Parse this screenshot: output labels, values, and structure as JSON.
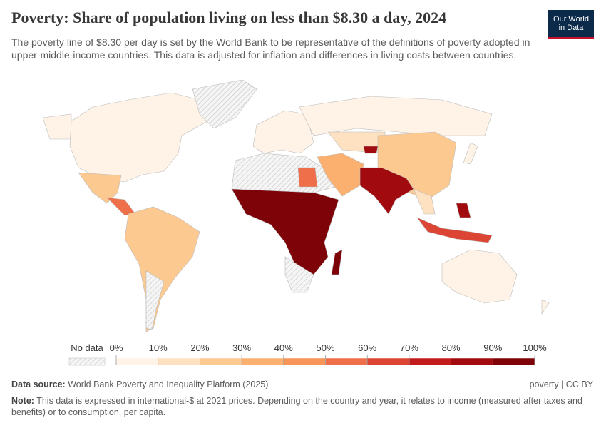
{
  "header": {
    "title": "Poverty: Share of population living on less than $8.30 a day, 2024",
    "subtitle": "The poverty line of $8.30 per day is set by the World Bank to be representative of the definitions of poverty adopted in upper-middle-income countries. This data is adjusted for inflation and differences in living costs between countries.",
    "logo": [
      "Our World",
      "in Data"
    ]
  },
  "legend": {
    "no_data": "No data",
    "ticks": [
      {
        "value": 0,
        "label": "0%"
      },
      {
        "value": 10,
        "label": "10%"
      },
      {
        "value": 20,
        "label": "20%"
      },
      {
        "value": 30,
        "label": "30%"
      },
      {
        "value": 40,
        "label": "40%"
      },
      {
        "value": 50,
        "label": "50%"
      },
      {
        "value": 60,
        "label": "60%"
      },
      {
        "value": 70,
        "label": "70%"
      },
      {
        "value": 80,
        "label": "80%"
      },
      {
        "value": 90,
        "label": "90%"
      },
      {
        "value": 100,
        "label": "100%"
      }
    ],
    "colors": [
      "#fef3e6",
      "#fde1c0",
      "#fcc991",
      "#fbb070",
      "#f79458",
      "#ee6f4a",
      "#dc4433",
      "#c21b1b",
      "#a10a0e",
      "#7d0308"
    ]
  },
  "footer": {
    "source_label": "Data source:",
    "source": "World Bank Poverty and Inequality Platform (2025)",
    "license": "poverty | CC BY",
    "note_label": "Note:",
    "note": "This data is expressed in international-$ at 2021 prices. Depending on the country and year, it relates to income (measured after taxes and benefits) or to consumption, per capita."
  }
}
